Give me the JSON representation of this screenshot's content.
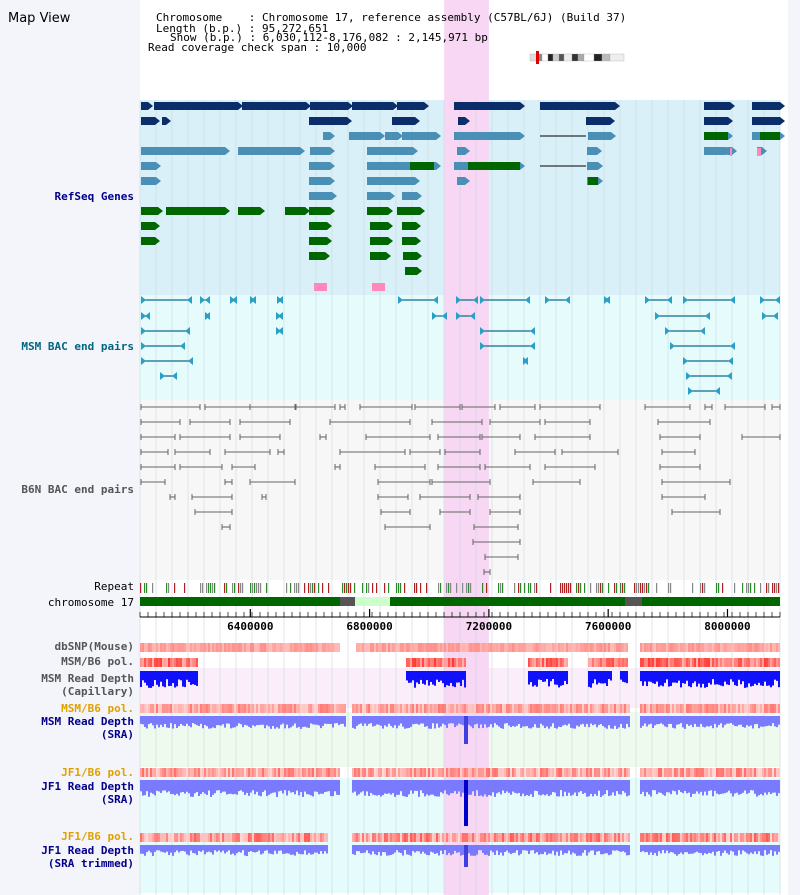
{
  "title": "Map View",
  "header": {
    "chromosome_line": "Chromosome    : Chromosome 17, reference assembly (C57BL/6J) (Build 37)",
    "length_line": "Length (b.p.) : 95,272,651",
    "show_line": "Show (b.p.) : 6,030,112-8,176,082 : 2,145,971 bp",
    "read_span_line": "Read coverage check span : 10,000"
  },
  "tracks": {
    "refseq": "RefSeq Genes",
    "msm_bac": "MSM BAC end pairs",
    "b6n_bac": "B6N BAC end pairs",
    "repeat": "Repeat",
    "chromosome": "chromosome 17",
    "dbsnp": "dbSNP(Mouse)",
    "msm_b6_pol_1": "MSM/B6 pol.",
    "msm_depth_cap_1": "MSM Read Depth",
    "msm_depth_cap_2": "(Capillary)",
    "msm_b6_pol_2": "MSM/B6 pol.",
    "msm_depth_sra_1": "MSM Read Depth",
    "msm_depth_sra_2": "(SRA)",
    "jf1_b6_pol_1": "JF1/B6 pol.",
    "jf1_depth_sra_1": "JF1 Read Depth",
    "jf1_depth_sra_2": "(SRA)",
    "jf1_b6_pol_2": "JF1/B6 pol.",
    "jf1_depth_trim_1": "JF1 Read Depth",
    "jf1_depth_trim_2": "(SRA trimmed)"
  },
  "axis": {
    "ticks": [
      "6400000",
      "6800000",
      "7200000",
      "7600000",
      "8000000"
    ],
    "tick_values": [
      6400000,
      6800000,
      7200000,
      7600000,
      8000000
    ],
    "range": [
      6030112,
      8176082
    ]
  },
  "highlight_region": [
    7050000,
    7200000
  ],
  "colors": {
    "refseq_bg": "#d9f0f8",
    "msm_bac_bg": "#e6fbfb",
    "highlight": "#f7d7f3",
    "gene_dark": "#0b2e6b",
    "gene_mid": "#4a8fb6",
    "gene_green": "#006600",
    "msm_bac": "#0d6b8c",
    "b6n_bac": "#666666",
    "chrom_band": "#006600",
    "depth_blue": "#1010ff",
    "depth_light": "#7a7aff",
    "label_blue": "#00008b",
    "label_orange": "#e0a000",
    "label_teal": "#006680"
  }
}
